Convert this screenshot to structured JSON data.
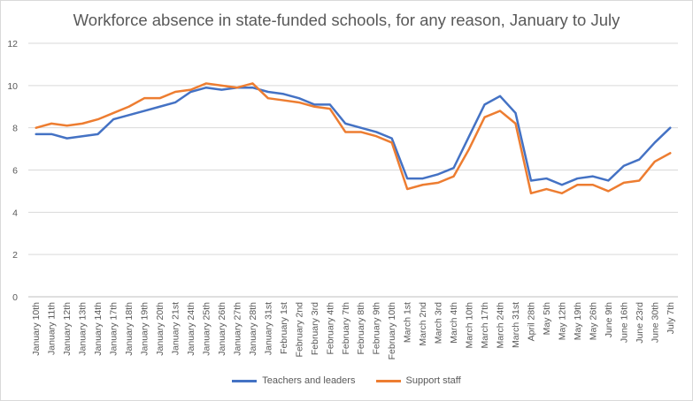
{
  "chart_data": {
    "type": "line",
    "title": "Workforce absence in state-funded schools, for any reason, January to July",
    "xlabel": "",
    "ylabel": "",
    "ylim": [
      0,
      12
    ],
    "yticks": [
      0,
      2,
      4,
      6,
      8,
      10,
      12
    ],
    "grid": true,
    "legend_position": "bottom",
    "categories": [
      "January 10th",
      "January 11th",
      "January 12th",
      "January 13th",
      "January 14th",
      "January 17th",
      "January 18th",
      "January 19th",
      "January 20th",
      "January 21st",
      "January 24th",
      "January 25th",
      "January 26th",
      "January 27th",
      "January 28th",
      "January 31st",
      "February 1st",
      "February 2nd",
      "February 3rd",
      "February 4th",
      "February 7th",
      "February 8th",
      "February 9th",
      "February 10th",
      "March 1st",
      "March 2nd",
      "March 3rd",
      "March 4th",
      "March 10th",
      "March 17th",
      "March 24th",
      "March 31st",
      "April 28th",
      "May 5th",
      "May 12th",
      "May 19th",
      "May 26th",
      "June 9th",
      "June 16th",
      "June 23rd",
      "June 30th",
      "July 7th"
    ],
    "series": [
      {
        "name": "Teachers and leaders",
        "color": "#4472c4",
        "values": [
          7.7,
          7.7,
          7.5,
          7.6,
          7.7,
          8.4,
          8.6,
          8.8,
          9.0,
          9.2,
          9.7,
          9.9,
          9.8,
          9.9,
          9.9,
          9.7,
          9.6,
          9.4,
          9.1,
          9.1,
          8.2,
          8.0,
          7.8,
          7.5,
          5.6,
          5.6,
          5.8,
          6.1,
          7.6,
          9.1,
          9.5,
          8.7,
          5.5,
          5.6,
          5.3,
          5.6,
          5.7,
          5.5,
          6.2,
          6.5,
          7.3,
          8.0
        ]
      },
      {
        "name": "Support staff",
        "color": "#ed7d31",
        "values": [
          8.0,
          8.2,
          8.1,
          8.2,
          8.4,
          8.7,
          9.0,
          9.4,
          9.4,
          9.7,
          9.8,
          10.1,
          10.0,
          9.9,
          10.1,
          9.4,
          9.3,
          9.2,
          9.0,
          8.9,
          7.8,
          7.8,
          7.6,
          7.3,
          5.1,
          5.3,
          5.4,
          5.7,
          7.0,
          8.5,
          8.8,
          8.2,
          4.9,
          5.1,
          4.9,
          5.3,
          5.3,
          5.0,
          5.4,
          5.5,
          6.4,
          6.8
        ]
      }
    ]
  }
}
